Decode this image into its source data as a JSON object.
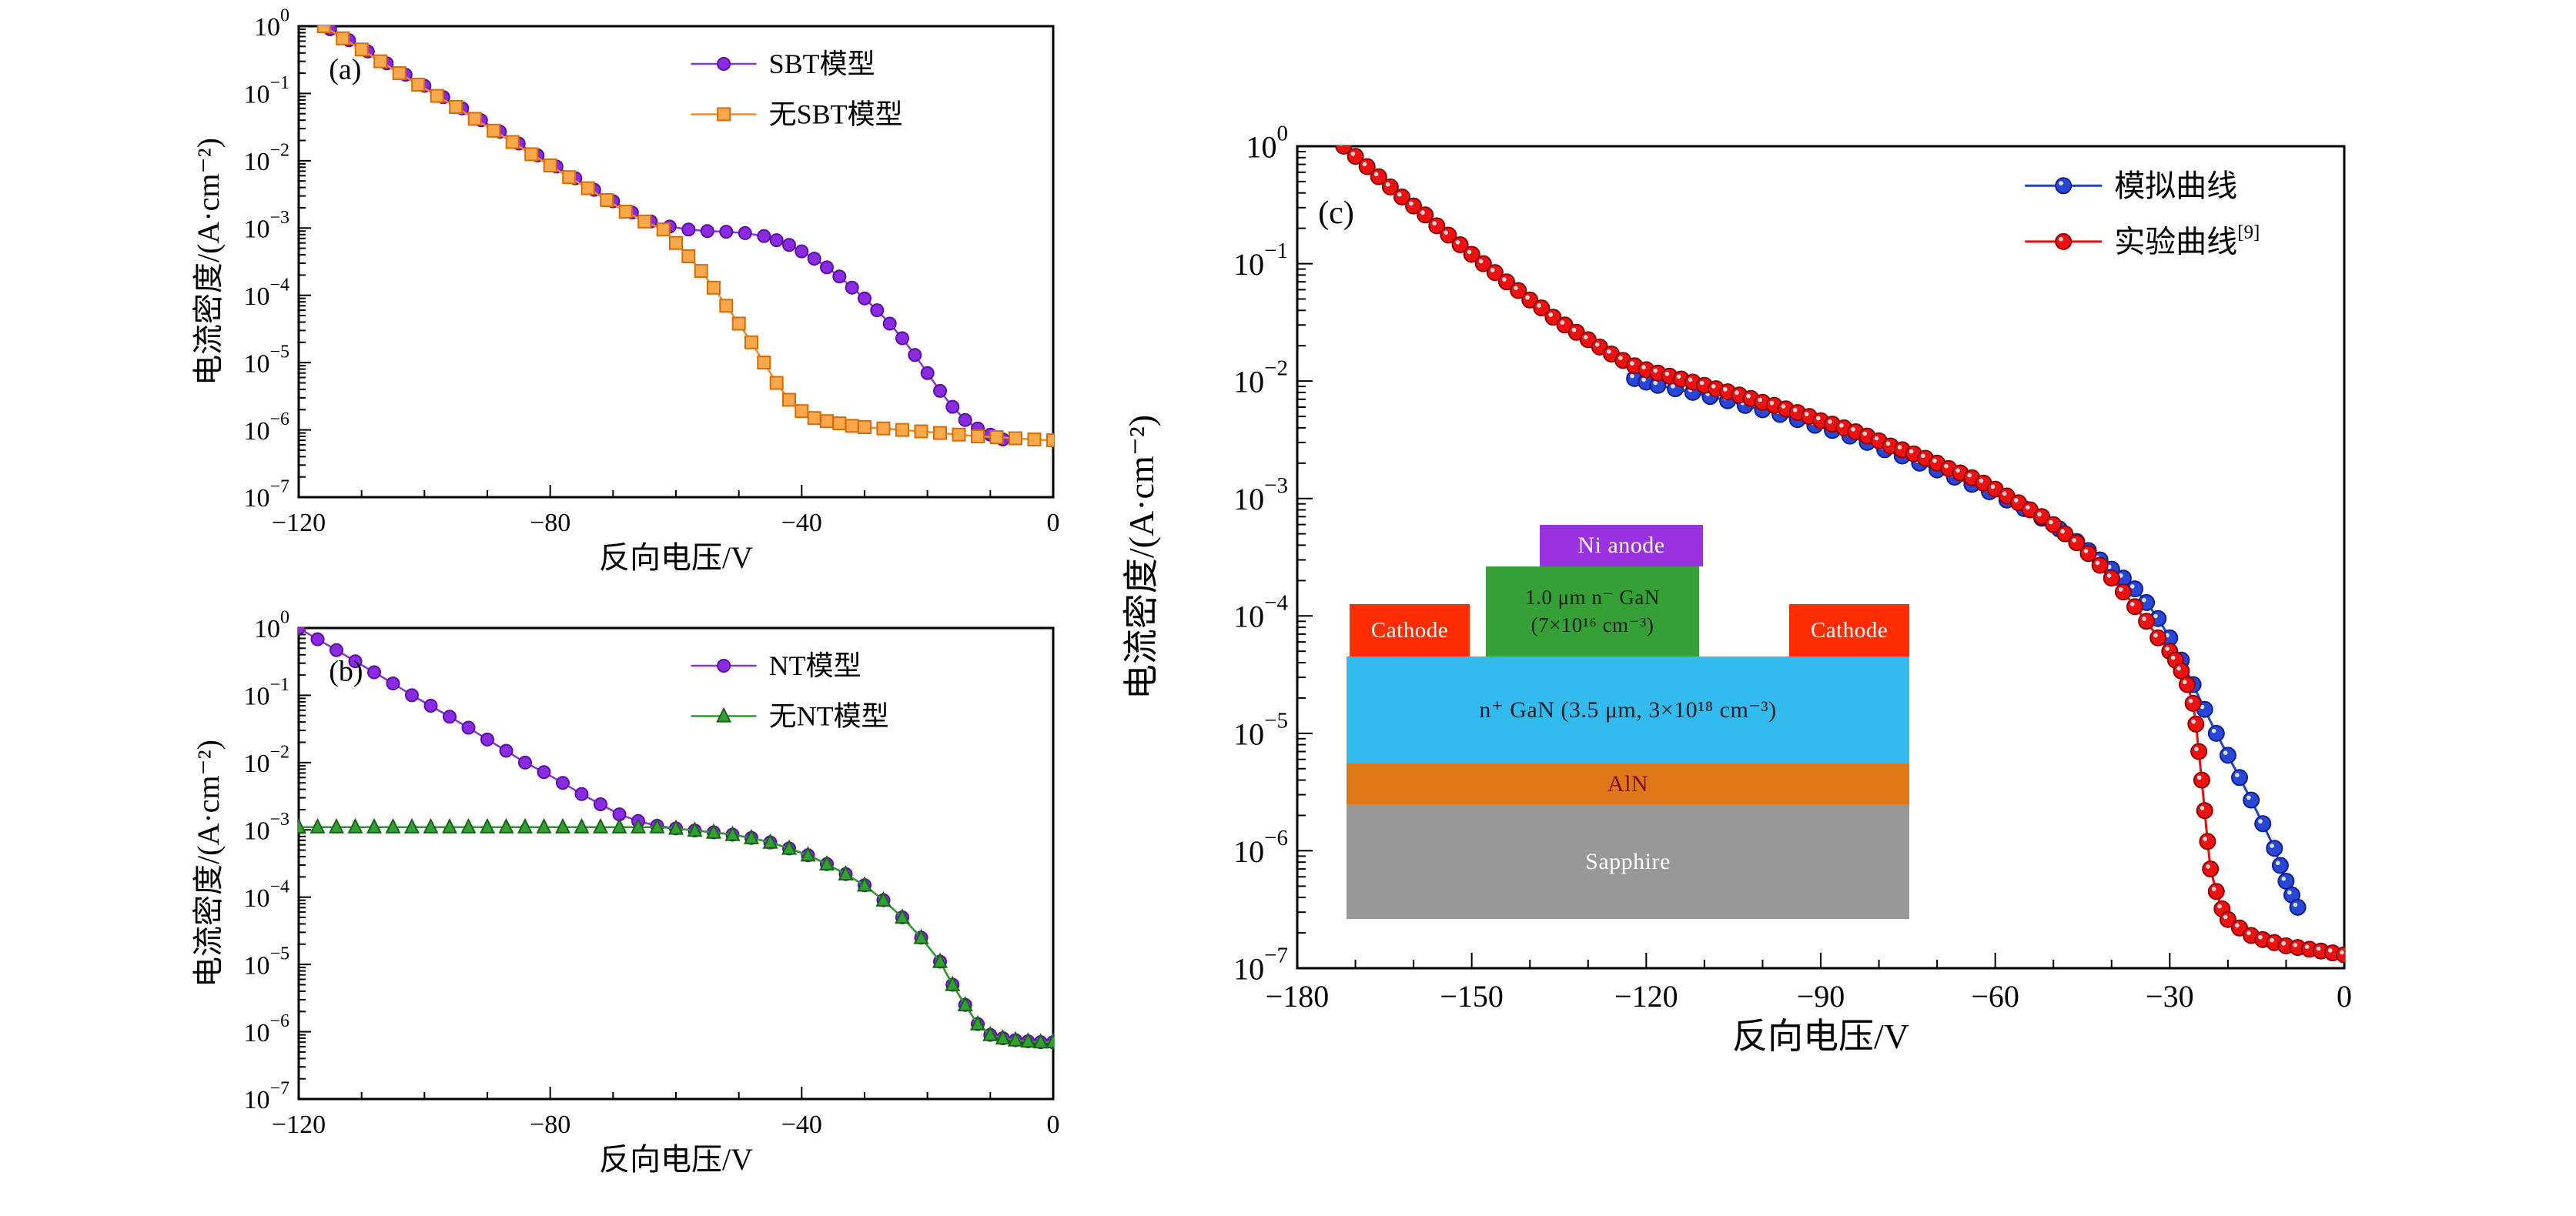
{
  "figure": {
    "background": "#ffffff",
    "xlabel": "反向电压/V",
    "ylabel": "电流密度/(A·cm⁻²)"
  },
  "chart_data": [
    {
      "id": "a",
      "type": "line",
      "panel_label": "(a)",
      "xlabel": "反向电压/V",
      "ylabel": "电流密度/(A·cm⁻²)",
      "xlim": [
        -120,
        0
      ],
      "ylog": true,
      "ylim_exp": [
        -7,
        0
      ],
      "x_major_ticks": [
        -120,
        -80,
        -40,
        0
      ],
      "x_minor_step": 10,
      "grid": false,
      "legend_position": "top-right",
      "series": [
        {
          "name": "SBT模型",
          "marker": "circle",
          "color": "#8833DD",
          "fill": "#8A2BE2",
          "edge": "#5B0EA6",
          "x": [
            -115,
            -112,
            -109,
            -106,
            -103,
            -100,
            -97,
            -94,
            -91,
            -88,
            -85,
            -82,
            -79,
            -76,
            -73,
            -70,
            -67,
            -64,
            -61,
            -58,
            -55,
            -52,
            -49,
            -46,
            -44,
            -42,
            -40,
            -38,
            -36,
            -34,
            -32,
            -30,
            -28,
            -26,
            -24,
            -22,
            -20,
            -18,
            -16,
            -14,
            -12,
            -10,
            -8
          ],
          "y": [
            0.9,
            0.62,
            0.42,
            0.28,
            0.19,
            0.13,
            0.088,
            0.06,
            0.04,
            0.027,
            0.018,
            0.012,
            0.0082,
            0.0055,
            0.0037,
            0.0025,
            0.0017,
            0.00125,
            0.00105,
            0.00095,
            0.0009,
            0.00088,
            0.00084,
            0.00076,
            0.00066,
            0.00056,
            0.00045,
            0.00035,
            0.00026,
            0.00019,
            0.00013,
            9e-05,
            6e-05,
            3.8e-05,
            2.3e-05,
            1.3e-05,
            7e-06,
            3.8e-06,
            2.2e-06,
            1.4e-06,
            1.05e-06,
            8.5e-07,
            7.2e-07
          ]
        },
        {
          "name": "无SBT模型",
          "marker": "square",
          "color": "#F08A28",
          "fill": "#F9A94C",
          "edge": "#D96A08",
          "x": [
            -116,
            -113,
            -110,
            -107,
            -104,
            -101,
            -98,
            -95,
            -92,
            -89,
            -86,
            -83,
            -80,
            -77,
            -74,
            -71,
            -68,
            -65,
            -62,
            -60,
            -58,
            -56,
            -54,
            -52,
            -50,
            -48,
            -46,
            -44,
            -42,
            -40,
            -38,
            -36,
            -34,
            -32,
            -30,
            -27,
            -24,
            -21,
            -18,
            -15,
            -12,
            -9,
            -6,
            -3,
            0
          ],
          "y": [
            1.0,
            0.66,
            0.45,
            0.3,
            0.2,
            0.135,
            0.092,
            0.063,
            0.042,
            0.028,
            0.019,
            0.0125,
            0.0085,
            0.0057,
            0.0039,
            0.0026,
            0.00175,
            0.00125,
            0.00095,
            0.0006,
            0.00038,
            0.00023,
            0.00013,
            7e-05,
            3.8e-05,
            2e-05,
            1e-05,
            5e-06,
            2.8e-06,
            1.9e-06,
            1.5e-06,
            1.35e-06,
            1.25e-06,
            1.15e-06,
            1.1e-06,
            1.05e-06,
            1e-06,
            9.5e-07,
            9e-07,
            8.5e-07,
            8e-07,
            7.8e-07,
            7.5e-07,
            7.2e-07,
            7e-07
          ]
        }
      ]
    },
    {
      "id": "b",
      "type": "line",
      "panel_label": "(b)",
      "xlabel": "反向电压/V",
      "ylabel": "电流密度/(A·cm⁻²)",
      "xlim": [
        -120,
        0
      ],
      "ylog": true,
      "ylim_exp": [
        -7,
        0
      ],
      "x_major_ticks": [
        -120,
        -80,
        -40,
        0
      ],
      "x_minor_step": 10,
      "grid": false,
      "legend_position": "top-right",
      "series": [
        {
          "name": "NT模型",
          "marker": "circle",
          "color": "#8833DD",
          "fill": "#8A2BE2",
          "edge": "#5B0EA6",
          "x": [
            -120,
            -117,
            -114,
            -111,
            -108,
            -105,
            -102,
            -99,
            -96,
            -93,
            -90,
            -87,
            -84,
            -81,
            -78,
            -75,
            -72,
            -69,
            -66,
            -63,
            -60,
            -57,
            -54,
            -51,
            -48,
            -45,
            -42,
            -39,
            -36,
            -33,
            -30,
            -27,
            -24,
            -21,
            -18,
            -16,
            -14,
            -12,
            -10,
            -8,
            -6,
            -4,
            -2,
            0
          ],
          "y": [
            1.0,
            0.68,
            0.47,
            0.32,
            0.22,
            0.15,
            0.1,
            0.07,
            0.048,
            0.033,
            0.022,
            0.015,
            0.01,
            0.0072,
            0.005,
            0.0034,
            0.0024,
            0.0017,
            0.00135,
            0.00115,
            0.00105,
            0.00098,
            0.00092,
            0.00085,
            0.00076,
            0.00065,
            0.00053,
            0.00042,
            0.00031,
            0.00022,
            0.00015,
            9e-05,
            5e-05,
            2.5e-05,
            1.1e-05,
            5e-06,
            2.5e-06,
            1.3e-06,
            9e-07,
            8e-07,
            7.5e-07,
            7.2e-07,
            7e-07,
            7e-07
          ]
        },
        {
          "name": "无NT模型",
          "marker": "triangle",
          "color": "#2E9B2E",
          "fill": "#33A033",
          "edge": "#176417",
          "x": [
            -120,
            -117,
            -114,
            -111,
            -108,
            -105,
            -102,
            -99,
            -96,
            -93,
            -90,
            -87,
            -84,
            -81,
            -78,
            -75,
            -72,
            -69,
            -66,
            -63,
            -60,
            -57,
            -54,
            -51,
            -48,
            -45,
            -42,
            -39,
            -36,
            -33,
            -30,
            -27,
            -24,
            -21,
            -18,
            -16,
            -14,
            -12,
            -10,
            -8,
            -6,
            -4,
            -2,
            0
          ],
          "y": [
            0.0011,
            0.0011,
            0.0011,
            0.0011,
            0.0011,
            0.0011,
            0.0011,
            0.0011,
            0.0011,
            0.0011,
            0.0011,
            0.0011,
            0.0011,
            0.0011,
            0.0011,
            0.0011,
            0.0011,
            0.0011,
            0.0011,
            0.0011,
            0.00105,
            0.00098,
            0.00092,
            0.00085,
            0.00076,
            0.00065,
            0.00053,
            0.00042,
            0.00031,
            0.00022,
            0.00015,
            9e-05,
            5e-05,
            2.5e-05,
            1.1e-05,
            5e-06,
            2.5e-06,
            1.3e-06,
            9e-07,
            8e-07,
            7.5e-07,
            7.2e-07,
            7e-07,
            7e-07
          ]
        }
      ]
    },
    {
      "id": "c",
      "type": "line",
      "panel_label": "(c)",
      "xlabel": "反向电压/V",
      "ylabel": "电流密度/(A·cm⁻²)",
      "xlim": [
        -180,
        0
      ],
      "ylog": true,
      "ylim_exp": [
        -7,
        0
      ],
      "x_major_ticks": [
        -180,
        -150,
        -120,
        -90,
        -60,
        -30,
        0
      ],
      "x_minor_step": 10,
      "grid": false,
      "legend_position": "top-right",
      "series": [
        {
          "name": "模拟曲线",
          "marker": "ball",
          "color": "#2143C8",
          "fill": "#2747D4",
          "edge": "#0E1E96",
          "x": [
            -122,
            -120,
            -118,
            -115,
            -112,
            -109,
            -106,
            -103,
            -100,
            -97,
            -94,
            -91,
            -88,
            -85,
            -82,
            -79,
            -76,
            -73,
            -70,
            -67,
            -64,
            -61,
            -58,
            -55,
            -52,
            -49,
            -46,
            -44,
            -42,
            -40,
            -38,
            -36,
            -34,
            -32,
            -30,
            -28,
            -26,
            -24,
            -22,
            -20,
            -18,
            -16,
            -14,
            -12,
            -11,
            -10,
            -9,
            -8
          ],
          "y": [
            0.0105,
            0.0098,
            0.0092,
            0.0086,
            0.008,
            0.0074,
            0.0068,
            0.0062,
            0.0057,
            0.0052,
            0.0047,
            0.0042,
            0.0038,
            0.0034,
            0.003,
            0.0026,
            0.0023,
            0.002,
            0.00175,
            0.00152,
            0.00132,
            0.00114,
            0.00097,
            0.00082,
            0.00068,
            0.00055,
            0.00043,
            0.00036,
            0.0003,
            0.00025,
            0.00021,
            0.00017,
            0.00013,
            9.5e-05,
            6.5e-05,
            4.2e-05,
            2.6e-05,
            1.6e-05,
            1e-05,
            6.5e-06,
            4.2e-06,
            2.7e-06,
            1.7e-06,
            1.05e-06,
            7.5e-07,
            5.5e-07,
            4.2e-07,
            3.3e-07
          ]
        },
        {
          "name": "实验曲线",
          "name_sup": "[9]",
          "marker": "ball",
          "color": "#E8100C",
          "fill": "#EE1111",
          "edge": "#910000",
          "x": [
            -172,
            -170,
            -168,
            -166,
            -164,
            -162,
            -160,
            -158,
            -156,
            -154,
            -152,
            -150,
            -148,
            -146,
            -144,
            -142,
            -140,
            -138,
            -136,
            -134,
            -132,
            -130,
            -128,
            -126,
            -124,
            -122,
            -120,
            -118,
            -116,
            -114,
            -112,
            -110,
            -108,
            -106,
            -104,
            -102,
            -100,
            -98,
            -96,
            -94,
            -92,
            -90,
            -88,
            -86,
            -84,
            -82,
            -80,
            -78,
            -76,
            -74,
            -72,
            -70,
            -68,
            -66,
            -64,
            -62,
            -60,
            -58,
            -56,
            -54,
            -52,
            -50,
            -48,
            -46,
            -44,
            -42,
            -40,
            -38,
            -36,
            -34,
            -32,
            -30,
            -29,
            -28,
            -27,
            -26,
            -25.5,
            -25,
            -24.5,
            -24,
            -23.5,
            -23,
            -22,
            -21,
            -20,
            -18,
            -16,
            -14,
            -12,
            -10,
            -8,
            -6,
            -4,
            -2,
            0
          ],
          "y": [
            1.0,
            0.82,
            0.67,
            0.55,
            0.45,
            0.37,
            0.31,
            0.26,
            0.21,
            0.175,
            0.145,
            0.12,
            0.1,
            0.084,
            0.07,
            0.059,
            0.049,
            0.042,
            0.035,
            0.03,
            0.026,
            0.0225,
            0.0195,
            0.017,
            0.015,
            0.0135,
            0.0125,
            0.0117,
            0.011,
            0.0104,
            0.0098,
            0.0092,
            0.0086,
            0.0081,
            0.0076,
            0.0071,
            0.0066,
            0.0062,
            0.0058,
            0.0054,
            0.005,
            0.0046,
            0.0043,
            0.004,
            0.0037,
            0.0034,
            0.0031,
            0.0028,
            0.0026,
            0.0024,
            0.0022,
            0.002,
            0.0018,
            0.00165,
            0.0015,
            0.00135,
            0.0012,
            0.00105,
            0.00092,
            0.0008,
            0.0007,
            0.0006,
            0.0005,
            0.00042,
            0.00034,
            0.00027,
            0.00021,
            0.00016,
            0.00012,
            9e-05,
            6.5e-05,
            5e-05,
            4.2e-05,
            3.4e-05,
            2.6e-05,
            1.8e-05,
            1.2e-05,
            7e-06,
            4e-06,
            2.2e-06,
            1.2e-06,
            7e-07,
            4.5e-07,
            3.2e-07,
            2.6e-07,
            2.2e-07,
            1.9e-07,
            1.75e-07,
            1.65e-07,
            1.55e-07,
            1.5e-07,
            1.45e-07,
            1.4e-07,
            1.35e-07,
            1.3e-07
          ]
        }
      ],
      "inset": {
        "layers": {
          "ni_anode": {
            "label": "Ni anode",
            "bg": "#9B30E0",
            "fg": "#ffffff"
          },
          "n_minus_gan": {
            "label_line1": "1.0 μm n⁻ GaN",
            "label_line2": "(7×10¹⁶ cm⁻³)",
            "bg": "#35A035",
            "fg": "#102010"
          },
          "cathode_left": {
            "label": "Cathode",
            "bg": "#FF2D00",
            "fg": "#ffffff"
          },
          "cathode_right": {
            "label": "Cathode",
            "bg": "#FF2D00",
            "fg": "#ffffff"
          },
          "n_plus_gan": {
            "label": "n⁺ GaN (3.5 μm, 3×10¹⁸ cm⁻³)",
            "bg": "#34BBEE",
            "fg": "#0A1A22"
          },
          "aln": {
            "label": "AlN",
            "bg": "#DE7718",
            "fg": "#7B1010"
          },
          "sapphire": {
            "label": "Sapphire",
            "bg": "#989898",
            "fg": "#ffffff"
          }
        }
      }
    }
  ]
}
